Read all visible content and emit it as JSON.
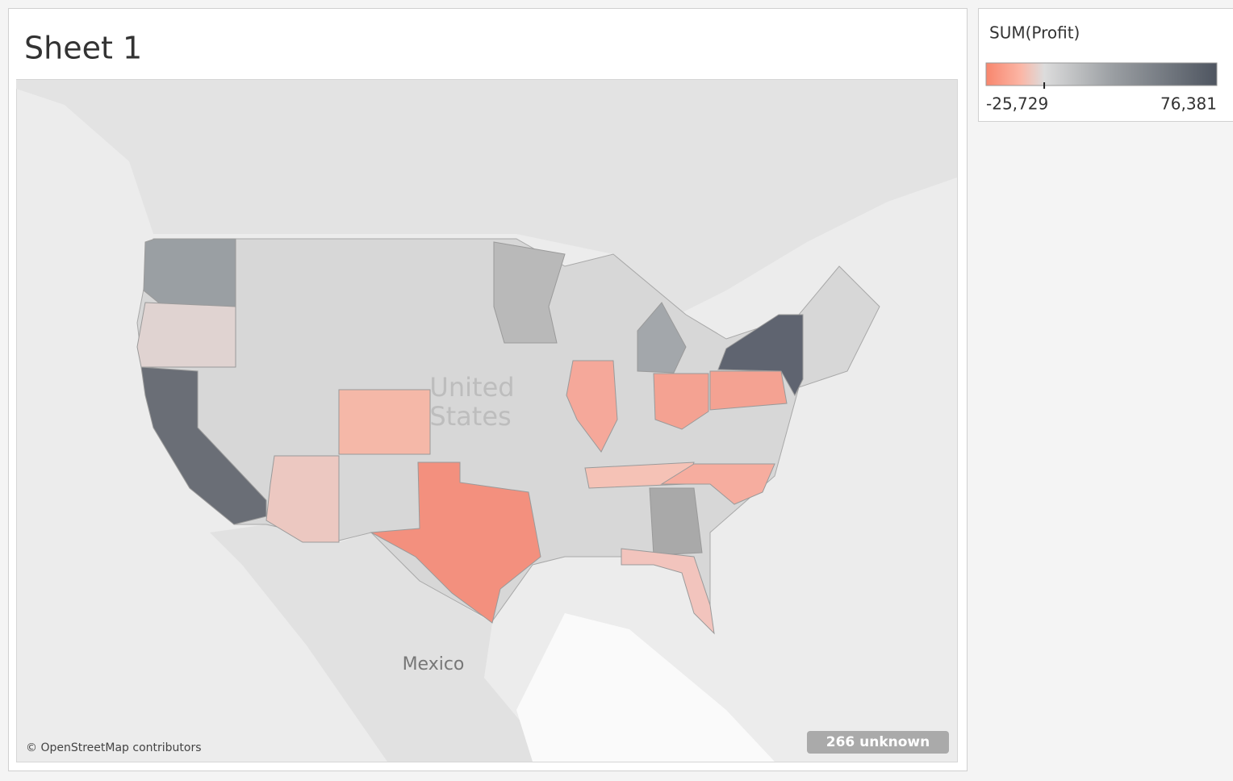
{
  "sheet": {
    "title": "Sheet 1"
  },
  "legend": {
    "title": "SUM(Profit)",
    "min": {
      "value": -25729,
      "label": "-25,729"
    },
    "max": {
      "value": 76381,
      "label": "76,381"
    }
  },
  "map": {
    "country_labels": {
      "united_states": [
        "United",
        "States"
      ],
      "mexico": "Mexico"
    },
    "attribution": "© OpenStreetMap contributors",
    "unknown_badge": "266 unknown"
  }
}
